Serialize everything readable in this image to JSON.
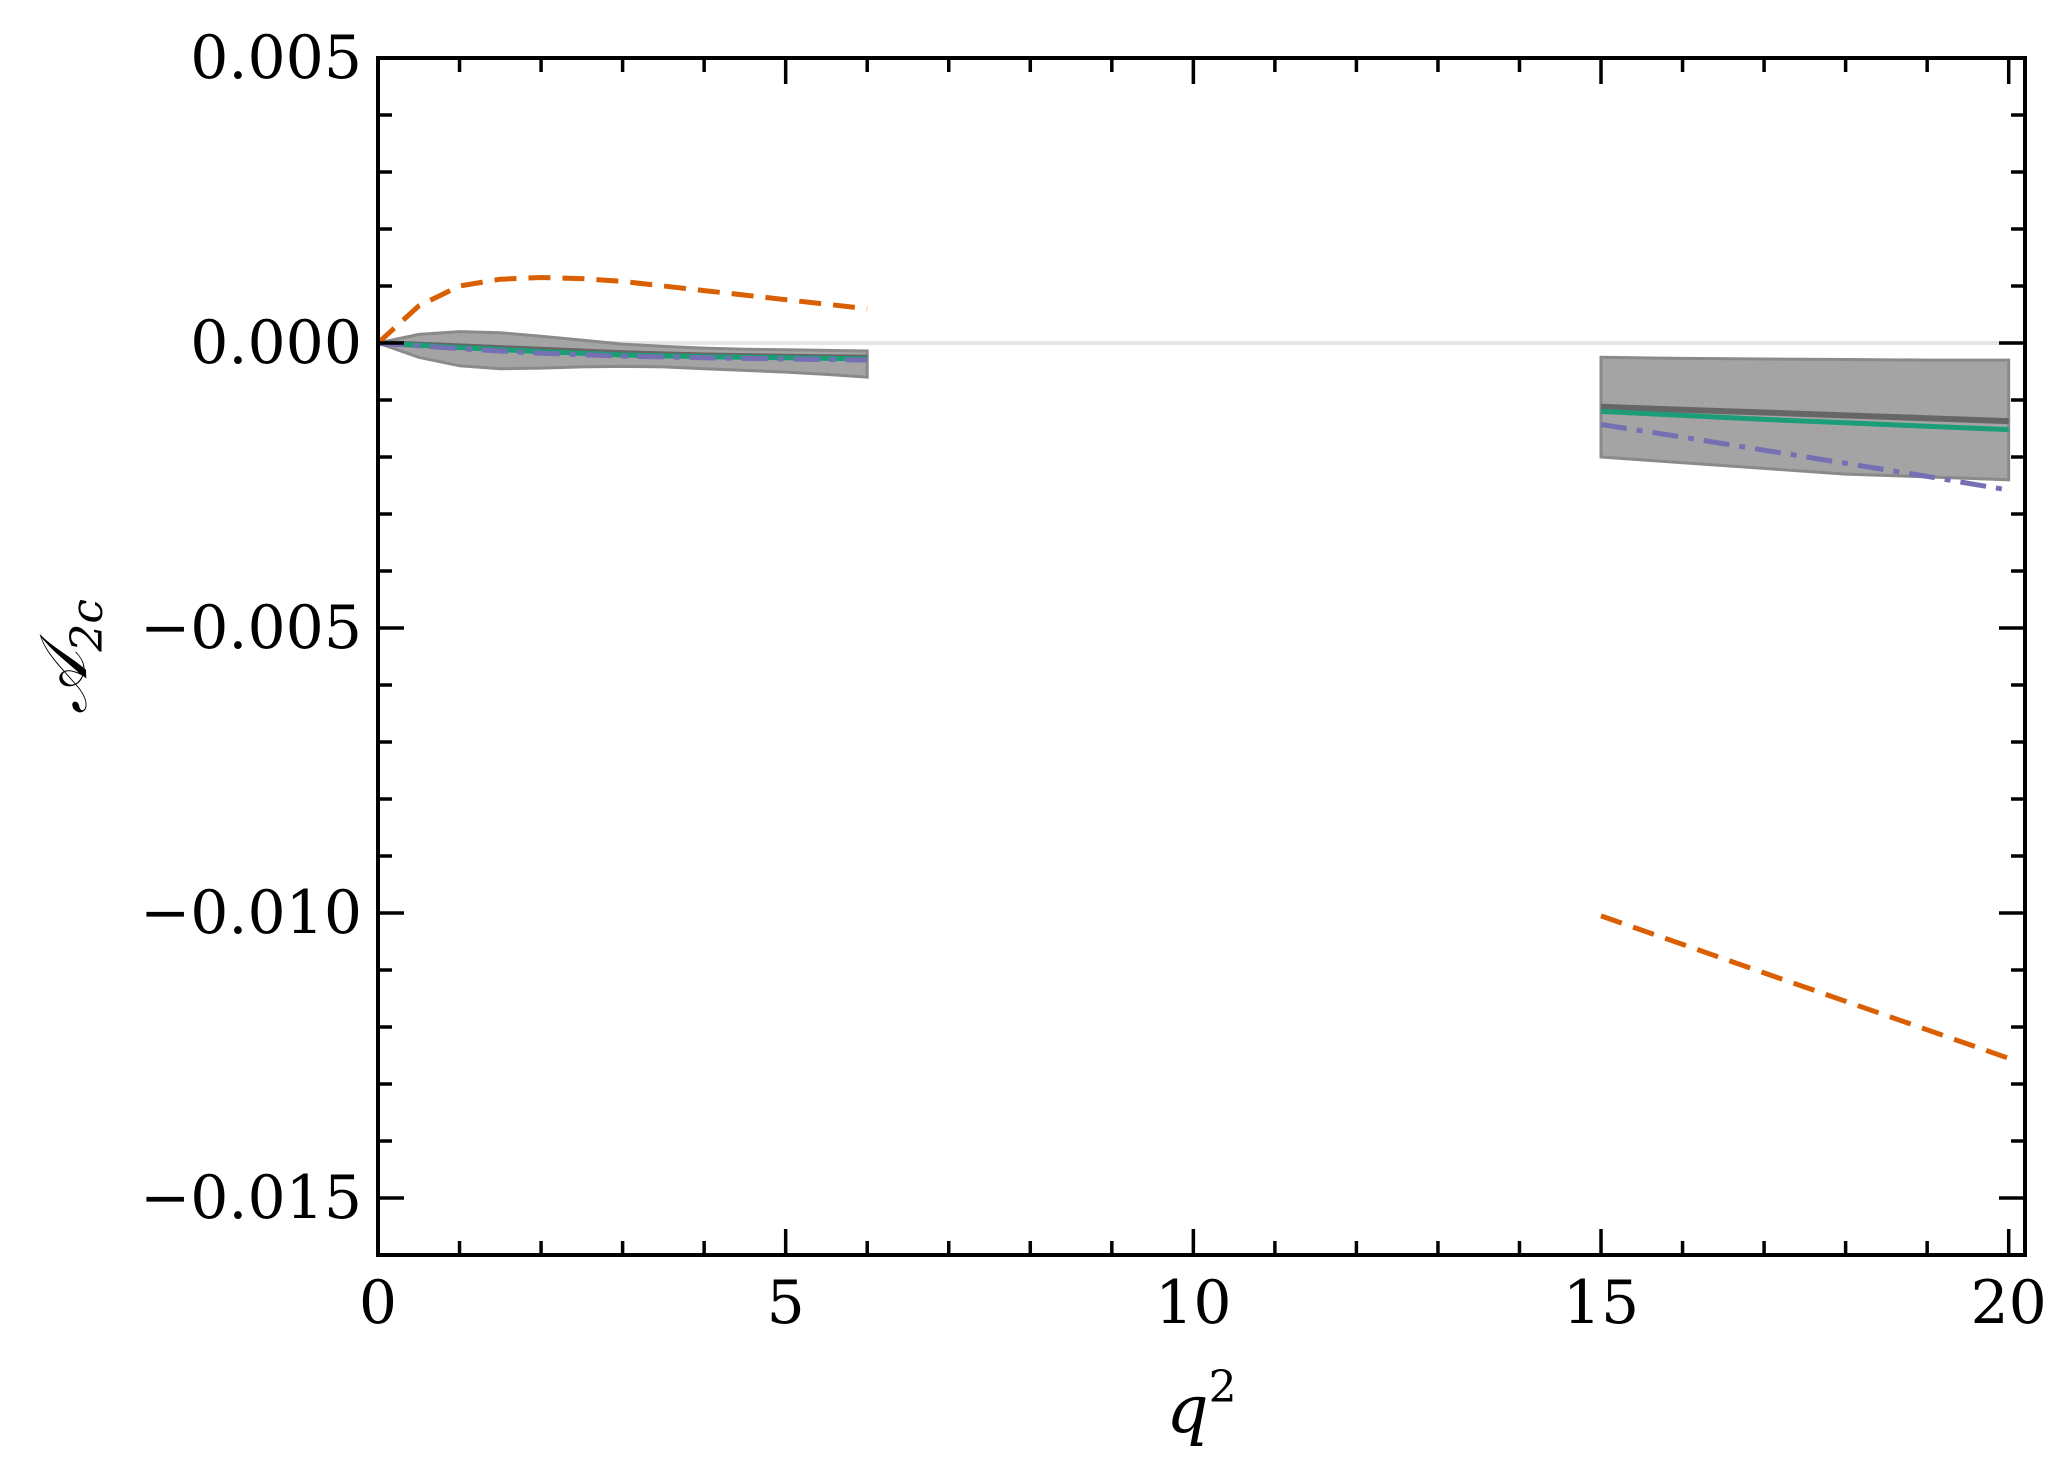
{
  "chart_data": {
    "type": "line",
    "title": "",
    "xlabel": "q",
    "xlabel_sup": "2",
    "ylabel": "𝒜",
    "ylabel_sub": "2c",
    "xlim": [
      0,
      20.2
    ],
    "ylim": [
      -0.016,
      0.005
    ],
    "xticks": [
      0,
      5,
      10,
      15,
      20
    ],
    "xtick_labels": [
      "0",
      "5",
      "10",
      "15",
      "20"
    ],
    "yticks": [
      0.005,
      0.0,
      -0.005,
      -0.01,
      -0.015
    ],
    "ytick_labels": [
      "0.005",
      "0.000",
      "−0.005",
      "−0.010",
      "−0.015"
    ],
    "grid": false,
    "legend": "none",
    "reference_line": {
      "y": 0.0,
      "color": "#e6e6e6"
    },
    "bands": [
      {
        "color": "#a4a4a4",
        "x": [
          0.0,
          0.5,
          1.0,
          1.5,
          2.0,
          2.5,
          3.0,
          3.5,
          4.0,
          4.5,
          5.0,
          5.5,
          6.0
        ],
        "upper": [
          0.0,
          0.00015,
          0.0002,
          0.00018,
          0.00012,
          5e-05,
          -2e-05,
          -6e-05,
          -9e-05,
          -0.00011,
          -0.00012,
          -0.00013,
          -0.00014
        ],
        "lower": [
          0.0,
          -0.00025,
          -0.0004,
          -0.00045,
          -0.00044,
          -0.00042,
          -0.00041,
          -0.00042,
          -0.00045,
          -0.00048,
          -0.00051,
          -0.00055,
          -0.0006
        ]
      },
      {
        "color": "#a4a4a4",
        "x": [
          15.0,
          16.0,
          17.0,
          18.0,
          19.0,
          20.0
        ],
        "upper": [
          -0.00025,
          -0.00027,
          -0.00028,
          -0.00029,
          -0.0003,
          -0.0003
        ],
        "lower": [
          -0.002,
          -0.0021,
          -0.0022,
          -0.0023,
          -0.00235,
          -0.0024
        ]
      }
    ],
    "series": [
      {
        "color": "#666666",
        "dash": "solid",
        "width": 6,
        "segments": [
          {
            "x": [
              0,
              1,
              2,
              3,
              4,
              5,
              6
            ],
            "y": [
              0,
              -6e-05,
              -0.00012,
              -0.00018,
              -0.00022,
              -0.00024,
              -0.00026
            ]
          },
          {
            "x": [
              15,
              16,
              17,
              18,
              19,
              20
            ],
            "y": [
              -0.00112,
              -0.00117,
              -0.00122,
              -0.00127,
              -0.00132,
              -0.00137
            ]
          }
        ]
      },
      {
        "color": "#1b9e77",
        "dash": "solid",
        "width": 5,
        "segments": [
          {
            "x": [
              0,
              1,
              2,
              3,
              4,
              5,
              6
            ],
            "y": [
              0,
              -8e-05,
              -0.00015,
              -0.00021,
              -0.00024,
              -0.00026,
              -0.00028
            ]
          },
          {
            "x": [
              15,
              16,
              17,
              18,
              19,
              20
            ],
            "y": [
              -0.0012,
              -0.00127,
              -0.00134,
              -0.0014,
              -0.00146,
              -0.00152
            ]
          }
        ]
      },
      {
        "color": "#7570b3",
        "dash": "dashdot",
        "width": 5,
        "segments": [
          {
            "x": [
              0,
              1,
              2,
              3,
              4,
              5,
              6
            ],
            "y": [
              0,
              -0.0001,
              -0.00018,
              -0.00023,
              -0.00026,
              -0.00028,
              -0.0003
            ]
          },
          {
            "x": [
              15,
              16,
              17,
              18,
              19,
              20
            ],
            "y": [
              -0.00143,
              -0.00165,
              -0.00188,
              -0.00211,
              -0.00234,
              -0.00258
            ]
          }
        ]
      },
      {
        "color": "#d95f02",
        "dash": "dashed",
        "width": 5,
        "segments": [
          {
            "x": [
              0,
              0.5,
              1,
              1.5,
              2,
              2.5,
              3,
              3.5,
              4,
              4.5,
              5,
              5.5,
              6
            ],
            "y": [
              0,
              0.00065,
              0.001,
              0.00112,
              0.00115,
              0.00113,
              0.00108,
              0.001,
              0.00092,
              0.00084,
              0.00076,
              0.00068,
              0.0006
            ]
          },
          {
            "x": [
              15,
              16,
              17,
              18,
              19,
              20
            ],
            "y": [
              -0.01005,
              -0.01055,
              -0.01105,
              -0.01155,
              -0.01205,
              -0.01255
            ]
          }
        ]
      }
    ]
  }
}
